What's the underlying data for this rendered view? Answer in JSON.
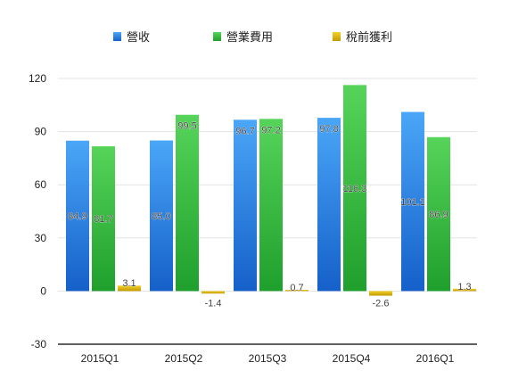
{
  "chart_data": {
    "type": "bar",
    "categories": [
      "2015Q1",
      "2015Q2",
      "2015Q3",
      "2015Q4",
      "2016Q1"
    ],
    "series": [
      {
        "name": "營收",
        "values": [
          84.9,
          85.0,
          96.7,
          97.8,
          101.1
        ],
        "color": "#2f7fe0"
      },
      {
        "name": "營業費用",
        "values": [
          81.7,
          99.5,
          97.2,
          116.3,
          86.9
        ],
        "color": "#2db83d"
      },
      {
        "name": "稅前獲利",
        "values": [
          3.1,
          -1.4,
          0.7,
          -2.6,
          1.3
        ],
        "color": "#d9b000"
      }
    ],
    "data_labels": [
      [
        "84.9",
        "85.0",
        "96.7",
        "97.8",
        "101.1"
      ],
      [
        "81.7",
        "99.5",
        "97.2",
        "116.3",
        "86.9"
      ],
      [
        "3.1",
        "-1.4",
        "0.7",
        "-2.6",
        "1.3"
      ]
    ],
    "yticks": [
      "-30",
      "0",
      "30",
      "60",
      "90",
      "120"
    ],
    "ylim": [
      -30,
      120
    ],
    "grid": true,
    "legend_position": "top"
  }
}
